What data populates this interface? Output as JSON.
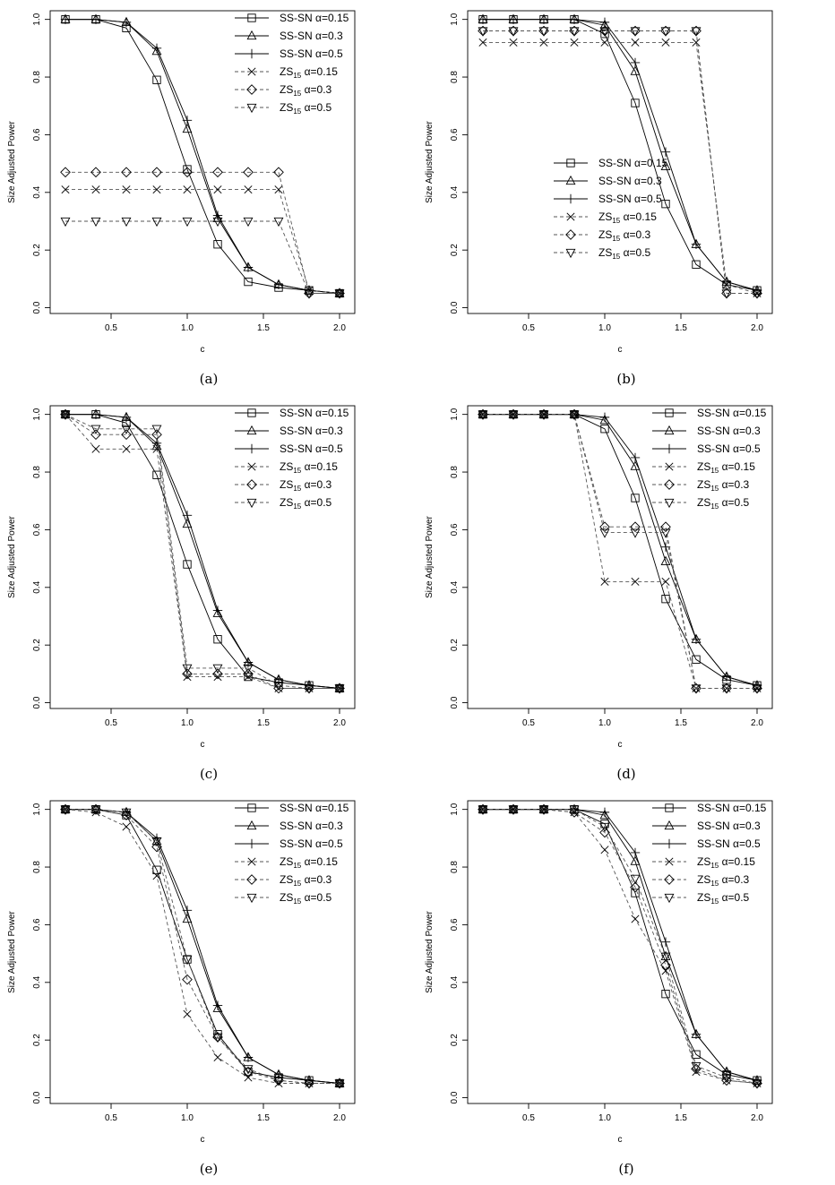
{
  "chart_data": [
    {
      "caption": "(a)",
      "type": "line",
      "xlabel": "c",
      "ylabel": "Size Adjusted Power",
      "xlim": [
        0.2,
        2.0
      ],
      "ylim": [
        0,
        1
      ],
      "xticks": [
        "0.5",
        "1.0",
        "1.5",
        "2.0"
      ],
      "yticks": [
        "0.0",
        "0.2",
        "0.4",
        "0.6",
        "0.8",
        "1.0"
      ],
      "legend_position": "top-right",
      "x": [
        0.2,
        0.4,
        0.6,
        0.8,
        1.0,
        1.2,
        1.4,
        1.6,
        1.8,
        2.0
      ],
      "series": [
        {
          "name": "SS-SN α=0.15",
          "label": "SS-SN",
          "alpha": "0.15",
          "sub": "",
          "marker": "square",
          "dash": "solid",
          "values": [
            1.0,
            1.0,
            0.97,
            0.79,
            0.48,
            0.22,
            0.09,
            0.07,
            0.06,
            0.05
          ]
        },
        {
          "name": "SS-SN α=0.3",
          "label": "SS-SN",
          "alpha": "0.3",
          "sub": "",
          "marker": "triangle",
          "dash": "solid",
          "values": [
            1.0,
            1.0,
            0.99,
            0.89,
            0.62,
            0.31,
            0.14,
            0.08,
            0.06,
            0.05
          ]
        },
        {
          "name": "SS-SN α=0.5",
          "label": "SS-SN",
          "alpha": "0.5",
          "sub": "",
          "marker": "plus",
          "dash": "solid",
          "values": [
            1.0,
            1.0,
            0.99,
            0.9,
            0.65,
            0.32,
            0.14,
            0.08,
            0.06,
            0.05
          ]
        },
        {
          "name": "ZS15 α=0.15",
          "label": "ZS",
          "alpha": "0.15",
          "sub": "15",
          "marker": "x",
          "dash": "dashed",
          "values": [
            0.41,
            0.41,
            0.41,
            0.41,
            0.41,
            0.41,
            0.41,
            0.41,
            0.06,
            0.05
          ]
        },
        {
          "name": "ZS15 α=0.3",
          "label": "ZS",
          "alpha": "0.3",
          "sub": "15",
          "marker": "diamond",
          "dash": "dashed",
          "values": [
            0.47,
            0.47,
            0.47,
            0.47,
            0.47,
            0.47,
            0.47,
            0.47,
            0.05,
            0.05
          ]
        },
        {
          "name": "ZS15 α=0.5",
          "label": "ZS",
          "alpha": "0.5",
          "sub": "15",
          "marker": "triangle-down",
          "dash": "dashed",
          "values": [
            0.3,
            0.3,
            0.3,
            0.3,
            0.3,
            0.3,
            0.3,
            0.3,
            0.05,
            0.05
          ]
        }
      ]
    },
    {
      "caption": "(b)",
      "type": "line",
      "xlabel": "c",
      "ylabel": "Size Adjusted Power",
      "xlim": [
        0.2,
        2.0
      ],
      "ylim": [
        0,
        1
      ],
      "xticks": [
        "0.5",
        "1.0",
        "1.5",
        "2.0"
      ],
      "yticks": [
        "0.0",
        "0.2",
        "0.4",
        "0.6",
        "0.8",
        "1.0"
      ],
      "legend_position": "center-left",
      "x": [
        0.2,
        0.4,
        0.6,
        0.8,
        1.0,
        1.2,
        1.4,
        1.6,
        1.8,
        2.0
      ],
      "series": [
        {
          "name": "SS-SN α=0.15",
          "label": "SS-SN",
          "alpha": "0.15",
          "sub": "",
          "marker": "square",
          "dash": "solid",
          "values": [
            1.0,
            1.0,
            1.0,
            1.0,
            0.95,
            0.71,
            0.36,
            0.15,
            0.08,
            0.06
          ]
        },
        {
          "name": "SS-SN α=0.3",
          "label": "SS-SN",
          "alpha": "0.3",
          "sub": "",
          "marker": "triangle",
          "dash": "solid",
          "values": [
            1.0,
            1.0,
            1.0,
            1.0,
            0.98,
            0.82,
            0.49,
            0.22,
            0.09,
            0.06
          ]
        },
        {
          "name": "SS-SN α=0.5",
          "label": "SS-SN",
          "alpha": "0.5",
          "sub": "",
          "marker": "plus",
          "dash": "solid",
          "values": [
            1.0,
            1.0,
            1.0,
            1.0,
            0.99,
            0.85,
            0.54,
            0.22,
            0.09,
            0.06
          ]
        },
        {
          "name": "ZS15 α=0.15",
          "label": "ZS",
          "alpha": "0.15",
          "sub": "15",
          "marker": "x",
          "dash": "dashed",
          "values": [
            0.92,
            0.92,
            0.92,
            0.92,
            0.92,
            0.92,
            0.92,
            0.92,
            0.08,
            0.05
          ]
        },
        {
          "name": "ZS15 α=0.3",
          "label": "ZS",
          "alpha": "0.3",
          "sub": "15",
          "marker": "diamond",
          "dash": "dashed",
          "values": [
            0.96,
            0.96,
            0.96,
            0.96,
            0.96,
            0.96,
            0.96,
            0.96,
            0.05,
            0.05
          ]
        },
        {
          "name": "ZS15 α=0.5",
          "label": "ZS",
          "alpha": "0.5",
          "sub": "15",
          "marker": "triangle-down",
          "dash": "dashed",
          "values": [
            0.96,
            0.96,
            0.96,
            0.96,
            0.96,
            0.96,
            0.96,
            0.96,
            0.05,
            0.05
          ]
        }
      ]
    },
    {
      "caption": "(c)",
      "type": "line",
      "xlabel": "c",
      "ylabel": "Size Adjusted Power",
      "xlim": [
        0.2,
        2.0
      ],
      "ylim": [
        0,
        1
      ],
      "xticks": [
        "0.5",
        "1.0",
        "1.5",
        "2.0"
      ],
      "yticks": [
        "0.0",
        "0.2",
        "0.4",
        "0.6",
        "0.8",
        "1.0"
      ],
      "legend_position": "top-right",
      "x": [
        0.2,
        0.4,
        0.6,
        0.8,
        1.0,
        1.2,
        1.4,
        1.6,
        1.8,
        2.0
      ],
      "series": [
        {
          "name": "SS-SN α=0.15",
          "label": "SS-SN",
          "alpha": "0.15",
          "sub": "",
          "marker": "square",
          "dash": "solid",
          "values": [
            1.0,
            1.0,
            0.97,
            0.79,
            0.48,
            0.22,
            0.09,
            0.07,
            0.06,
            0.05
          ]
        },
        {
          "name": "SS-SN α=0.3",
          "label": "SS-SN",
          "alpha": "0.3",
          "sub": "",
          "marker": "triangle",
          "dash": "solid",
          "values": [
            1.0,
            1.0,
            0.99,
            0.89,
            0.62,
            0.31,
            0.14,
            0.08,
            0.06,
            0.05
          ]
        },
        {
          "name": "SS-SN α=0.5",
          "label": "SS-SN",
          "alpha": "0.5",
          "sub": "",
          "marker": "plus",
          "dash": "solid",
          "values": [
            1.0,
            1.0,
            0.99,
            0.9,
            0.65,
            0.32,
            0.14,
            0.08,
            0.06,
            0.05
          ]
        },
        {
          "name": "ZS15 α=0.15",
          "label": "ZS",
          "alpha": "0.15",
          "sub": "15",
          "marker": "x",
          "dash": "dashed",
          "values": [
            1.0,
            0.88,
            0.88,
            0.88,
            0.09,
            0.09,
            0.09,
            0.05,
            0.05,
            0.05
          ]
        },
        {
          "name": "ZS15 α=0.3",
          "label": "ZS",
          "alpha": "0.3",
          "sub": "15",
          "marker": "diamond",
          "dash": "dashed",
          "values": [
            1.0,
            0.93,
            0.93,
            0.93,
            0.1,
            0.1,
            0.1,
            0.05,
            0.05,
            0.05
          ]
        },
        {
          "name": "ZS15 α=0.5",
          "label": "ZS",
          "alpha": "0.5",
          "sub": "15",
          "marker": "triangle-down",
          "dash": "dashed",
          "values": [
            1.0,
            0.95,
            0.95,
            0.95,
            0.12,
            0.12,
            0.12,
            0.06,
            0.05,
            0.05
          ]
        }
      ]
    },
    {
      "caption": "(d)",
      "type": "line",
      "xlabel": "c",
      "ylabel": "Size Adjusted Power",
      "xlim": [
        0.2,
        2.0
      ],
      "ylim": [
        0,
        1
      ],
      "xticks": [
        "0.5",
        "1.0",
        "1.5",
        "2.0"
      ],
      "yticks": [
        "0.0",
        "0.2",
        "0.4",
        "0.6",
        "0.8",
        "1.0"
      ],
      "legend_position": "top-right",
      "x": [
        0.2,
        0.4,
        0.6,
        0.8,
        1.0,
        1.2,
        1.4,
        1.6,
        1.8,
        2.0
      ],
      "series": [
        {
          "name": "SS-SN α=0.15",
          "label": "SS-SN",
          "alpha": "0.15",
          "sub": "",
          "marker": "square",
          "dash": "solid",
          "values": [
            1.0,
            1.0,
            1.0,
            1.0,
            0.95,
            0.71,
            0.36,
            0.15,
            0.08,
            0.06
          ]
        },
        {
          "name": "SS-SN α=0.3",
          "label": "SS-SN",
          "alpha": "0.3",
          "sub": "",
          "marker": "triangle",
          "dash": "solid",
          "values": [
            1.0,
            1.0,
            1.0,
            1.0,
            0.98,
            0.82,
            0.49,
            0.22,
            0.09,
            0.06
          ]
        },
        {
          "name": "SS-SN α=0.5",
          "label": "SS-SN",
          "alpha": "0.5",
          "sub": "",
          "marker": "plus",
          "dash": "solid",
          "values": [
            1.0,
            1.0,
            1.0,
            1.0,
            0.99,
            0.85,
            0.54,
            0.22,
            0.09,
            0.06
          ]
        },
        {
          "name": "ZS15 α=0.15",
          "label": "ZS",
          "alpha": "0.15",
          "sub": "15",
          "marker": "x",
          "dash": "dashed",
          "values": [
            1.0,
            1.0,
            1.0,
            1.0,
            0.42,
            0.42,
            0.42,
            0.05,
            0.05,
            0.05
          ]
        },
        {
          "name": "ZS15 α=0.3",
          "label": "ZS",
          "alpha": "0.3",
          "sub": "15",
          "marker": "diamond",
          "dash": "dashed",
          "values": [
            1.0,
            1.0,
            1.0,
            1.0,
            0.61,
            0.61,
            0.61,
            0.05,
            0.05,
            0.05
          ]
        },
        {
          "name": "ZS15 α=0.5",
          "label": "ZS",
          "alpha": "0.5",
          "sub": "15",
          "marker": "triangle-down",
          "dash": "dashed",
          "values": [
            1.0,
            1.0,
            1.0,
            1.0,
            0.59,
            0.59,
            0.59,
            0.05,
            0.05,
            0.05
          ]
        }
      ]
    },
    {
      "caption": "(e)",
      "type": "line",
      "xlabel": "c",
      "ylabel": "Size Adjusted Power",
      "xlim": [
        0.2,
        2.0
      ],
      "ylim": [
        0,
        1
      ],
      "xticks": [
        "0.5",
        "1.0",
        "1.5",
        "2.0"
      ],
      "yticks": [
        "0.0",
        "0.2",
        "0.4",
        "0.6",
        "0.8",
        "1.0"
      ],
      "legend_position": "top-right",
      "x": [
        0.2,
        0.4,
        0.6,
        0.8,
        1.0,
        1.2,
        1.4,
        1.6,
        1.8,
        2.0
      ],
      "series": [
        {
          "name": "SS-SN α=0.15",
          "label": "SS-SN",
          "alpha": "0.15",
          "sub": "",
          "marker": "square",
          "dash": "solid",
          "values": [
            1.0,
            1.0,
            0.98,
            0.79,
            0.48,
            0.22,
            0.09,
            0.07,
            0.06,
            0.05
          ]
        },
        {
          "name": "SS-SN α=0.3",
          "label": "SS-SN",
          "alpha": "0.3",
          "sub": "",
          "marker": "triangle",
          "dash": "solid",
          "values": [
            1.0,
            1.0,
            0.99,
            0.89,
            0.62,
            0.31,
            0.14,
            0.08,
            0.06,
            0.05
          ]
        },
        {
          "name": "SS-SN α=0.5",
          "label": "SS-SN",
          "alpha": "0.5",
          "sub": "",
          "marker": "plus",
          "dash": "solid",
          "values": [
            1.0,
            1.0,
            0.99,
            0.9,
            0.65,
            0.32,
            0.14,
            0.08,
            0.06,
            0.05
          ]
        },
        {
          "name": "ZS15 α=0.15",
          "label": "ZS",
          "alpha": "0.15",
          "sub": "15",
          "marker": "x",
          "dash": "dashed",
          "values": [
            1.0,
            0.99,
            0.94,
            0.77,
            0.29,
            0.14,
            0.07,
            0.05,
            0.05,
            0.05
          ]
        },
        {
          "name": "ZS15 α=0.3",
          "label": "ZS",
          "alpha": "0.3",
          "sub": "15",
          "marker": "diamond",
          "dash": "dashed",
          "values": [
            1.0,
            1.0,
            0.98,
            0.87,
            0.41,
            0.21,
            0.09,
            0.06,
            0.05,
            0.05
          ]
        },
        {
          "name": "ZS15 α=0.5",
          "label": "ZS",
          "alpha": "0.5",
          "sub": "15",
          "marker": "triangle-down",
          "dash": "dashed",
          "values": [
            1.0,
            1.0,
            0.99,
            0.89,
            0.48,
            0.21,
            0.1,
            0.06,
            0.05,
            0.05
          ]
        }
      ]
    },
    {
      "caption": "(f)",
      "type": "line",
      "xlabel": "c",
      "ylabel": "Size Adjusted Power",
      "xlim": [
        0.2,
        2.0
      ],
      "ylim": [
        0,
        1
      ],
      "xticks": [
        "0.5",
        "1.0",
        "1.5",
        "2.0"
      ],
      "yticks": [
        "0.0",
        "0.2",
        "0.4",
        "0.6",
        "0.8",
        "1.0"
      ],
      "legend_position": "top-right",
      "x": [
        0.2,
        0.4,
        0.6,
        0.8,
        1.0,
        1.2,
        1.4,
        1.6,
        1.8,
        2.0
      ],
      "series": [
        {
          "name": "SS-SN α=0.15",
          "label": "SS-SN",
          "alpha": "0.15",
          "sub": "",
          "marker": "square",
          "dash": "solid",
          "values": [
            1.0,
            1.0,
            1.0,
            1.0,
            0.95,
            0.71,
            0.36,
            0.15,
            0.08,
            0.06
          ]
        },
        {
          "name": "SS-SN α=0.3",
          "label": "SS-SN",
          "alpha": "0.3",
          "sub": "",
          "marker": "triangle",
          "dash": "solid",
          "values": [
            1.0,
            1.0,
            1.0,
            1.0,
            0.98,
            0.82,
            0.49,
            0.22,
            0.09,
            0.06
          ]
        },
        {
          "name": "SS-SN α=0.5",
          "label": "SS-SN",
          "alpha": "0.5",
          "sub": "",
          "marker": "plus",
          "dash": "solid",
          "values": [
            1.0,
            1.0,
            1.0,
            1.0,
            0.99,
            0.85,
            0.54,
            0.22,
            0.09,
            0.06
          ]
        },
        {
          "name": "ZS15 α=0.15",
          "label": "ZS",
          "alpha": "0.15",
          "sub": "15",
          "marker": "x",
          "dash": "dashed",
          "values": [
            1.0,
            1.0,
            1.0,
            0.99,
            0.86,
            0.62,
            0.44,
            0.09,
            0.06,
            0.05
          ]
        },
        {
          "name": "ZS15 α=0.3",
          "label": "ZS",
          "alpha": "0.3",
          "sub": "15",
          "marker": "diamond",
          "dash": "dashed",
          "values": [
            1.0,
            1.0,
            1.0,
            0.99,
            0.92,
            0.73,
            0.46,
            0.1,
            0.06,
            0.05
          ]
        },
        {
          "name": "ZS15 α=0.5",
          "label": "ZS",
          "alpha": "0.5",
          "sub": "15",
          "marker": "triangle-down",
          "dash": "dashed",
          "values": [
            1.0,
            1.0,
            1.0,
            1.0,
            0.94,
            0.76,
            0.49,
            0.11,
            0.07,
            0.05
          ]
        }
      ]
    }
  ]
}
